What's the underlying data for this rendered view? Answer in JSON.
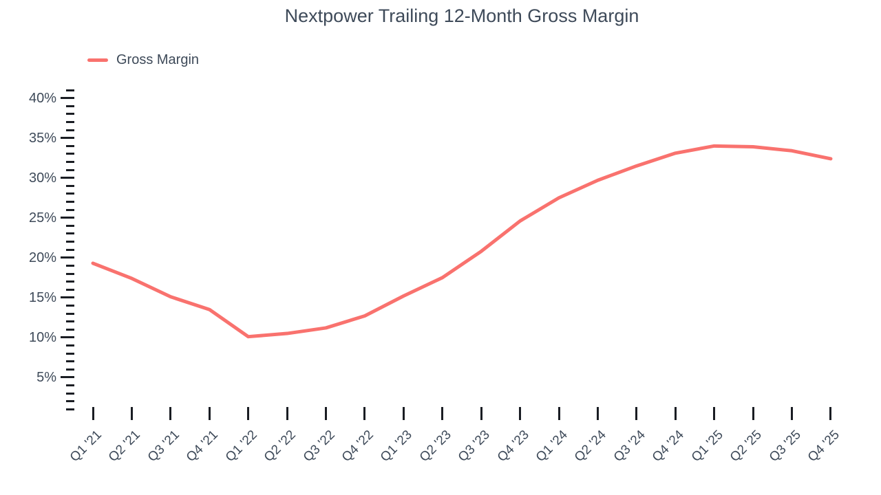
{
  "title": "Nextpower Trailing 12-Month Gross Margin",
  "legend": {
    "label": "Gross Margin"
  },
  "colors": {
    "line": "#F9726E",
    "text": "#3E4A59",
    "tick": "#1a1d23"
  },
  "chart_data": {
    "type": "line",
    "title": "Nextpower Trailing 12-Month Gross Margin",
    "xlabel": "",
    "ylabel": "",
    "categories": [
      "Q1 '21",
      "Q2 '21",
      "Q3 '21",
      "Q4 '21",
      "Q1 '22",
      "Q2 '22",
      "Q3 '22",
      "Q4 '22",
      "Q1 '23",
      "Q2 '23",
      "Q3 '23",
      "Q4 '23",
      "Q1 '24",
      "Q2 '24",
      "Q3 '24",
      "Q4 '24",
      "Q1 '25",
      "Q2 '25",
      "Q3 '25",
      "Q4 '25"
    ],
    "series": [
      {
        "name": "Gross Margin",
        "values": [
          19.3,
          17.4,
          15.1,
          13.5,
          10.1,
          10.5,
          11.2,
          12.7,
          15.2,
          17.5,
          20.8,
          24.6,
          27.5,
          29.7,
          31.5,
          33.1,
          34.0,
          33.9,
          33.4,
          32.4
        ]
      }
    ],
    "y_ticks": [
      "40%",
      "35%",
      "30%",
      "25%",
      "20%",
      "15%",
      "10%",
      "5%"
    ],
    "y_major_step": 5,
    "y_minor_step": 1,
    "ylim": [
      0,
      41
    ],
    "grid": false,
    "legend_position": "top-left"
  }
}
